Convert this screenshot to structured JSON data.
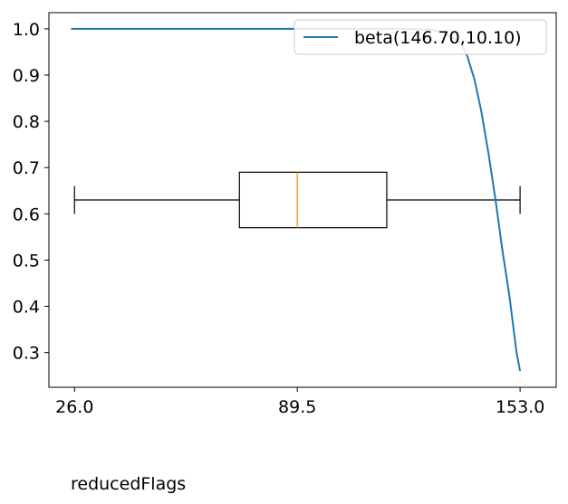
{
  "chart_data": {
    "type": "line+boxplot",
    "title": "",
    "xlabel": "reducedFlags",
    "ylabel": "",
    "x_ticks": [
      "26.0",
      "89.5",
      "153.0"
    ],
    "x_tick_values": [
      26.0,
      89.5,
      153.0
    ],
    "xlim": [
      18.7,
      163.3
    ],
    "y_ticks": [
      "0.3",
      "0.4",
      "0.5",
      "0.6",
      "0.7",
      "0.8",
      "0.9",
      "1.0"
    ],
    "y_tick_values": [
      0.3,
      0.4,
      0.5,
      0.6,
      0.7,
      0.8,
      0.9,
      1.0
    ],
    "ylim": [
      0.225,
      1.035
    ],
    "grid": false,
    "legend": {
      "position": "top-right",
      "entries": [
        "beta(146.70,10.10)"
      ]
    },
    "series": [
      {
        "name": "beta(146.70,10.10)",
        "color": "#1f77b4",
        "x": [
          25,
          40,
          60,
          80,
          100,
          120,
          128,
          132,
          136,
          138,
          140,
          142,
          144,
          146,
          148,
          150,
          152,
          153
        ],
        "y": [
          1.0,
          1.0,
          1.0,
          1.0,
          1.0,
          1.0,
          0.998,
          0.99,
          0.97,
          0.94,
          0.89,
          0.82,
          0.73,
          0.63,
          0.52,
          0.42,
          0.3,
          0.26
        ]
      }
    ],
    "boxplot": {
      "orientation": "horizontal",
      "whisker_low": 26.0,
      "q1": 73.0,
      "median": 89.5,
      "q3": 115.0,
      "whisker_high": 153.0,
      "y_center": 0.63,
      "box_y_range": [
        0.57,
        0.69
      ],
      "cap_y_range": [
        0.6,
        0.66
      ],
      "box_color": "#000000",
      "median_color": "#ff7f0e"
    }
  }
}
